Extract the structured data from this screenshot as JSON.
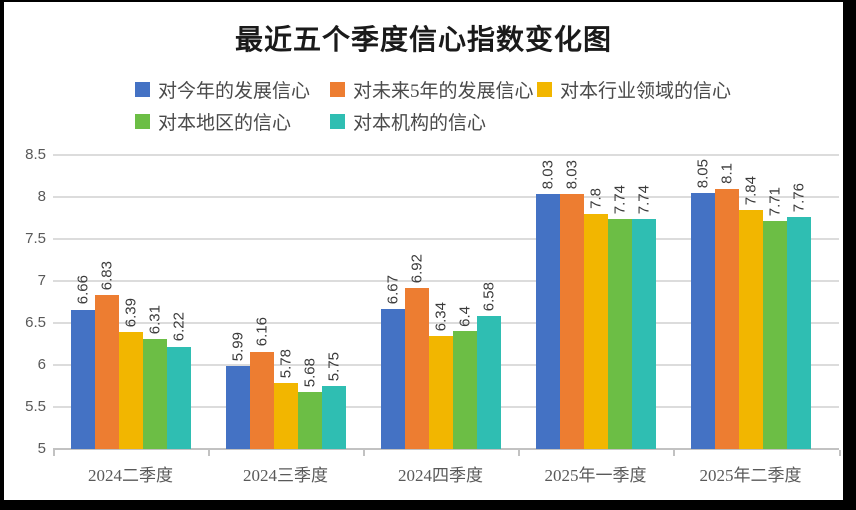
{
  "chart_data": {
    "type": "bar",
    "title": "最近五个季度信心指数变化图",
    "categories": [
      "2024二季度",
      "2024三季度",
      "2024四季度",
      "2025年一季度",
      "2025年二季度"
    ],
    "series": [
      {
        "name": "对今年的发展信心",
        "color": "#4472C4",
        "values": [
          6.66,
          5.99,
          6.67,
          8.03,
          8.05
        ]
      },
      {
        "name": "对未来5年的发展信心",
        "color": "#ED7D31",
        "values": [
          6.83,
          6.16,
          6.92,
          8.03,
          8.1
        ]
      },
      {
        "name": "对本行业领域的信心",
        "color": "#F2B600",
        "values": [
          6.39,
          5.78,
          6.34,
          7.8,
          7.84
        ]
      },
      {
        "name": "对本地区的信心",
        "color": "#6CBE45",
        "values": [
          6.31,
          5.68,
          6.4,
          7.74,
          7.71
        ]
      },
      {
        "name": "对本机构的信心",
        "color": "#2FBEB2",
        "values": [
          6.22,
          5.75,
          6.58,
          7.74,
          7.76
        ]
      }
    ],
    "ylim": [
      5,
      8.5
    ],
    "ytick_step": 0.5,
    "ytick_labels": [
      "5",
      "5.5",
      "6",
      "6.5",
      "7",
      "7.5",
      "8",
      "8.5"
    ],
    "grid": true,
    "data_labels": "rotated-90-above-bars",
    "legend_position": "top-left, two rows (3 items / 2 items)",
    "frame_border_color": "#000000",
    "gridline_color": "#dcdcdc",
    "axis_label_color": "#595959"
  }
}
